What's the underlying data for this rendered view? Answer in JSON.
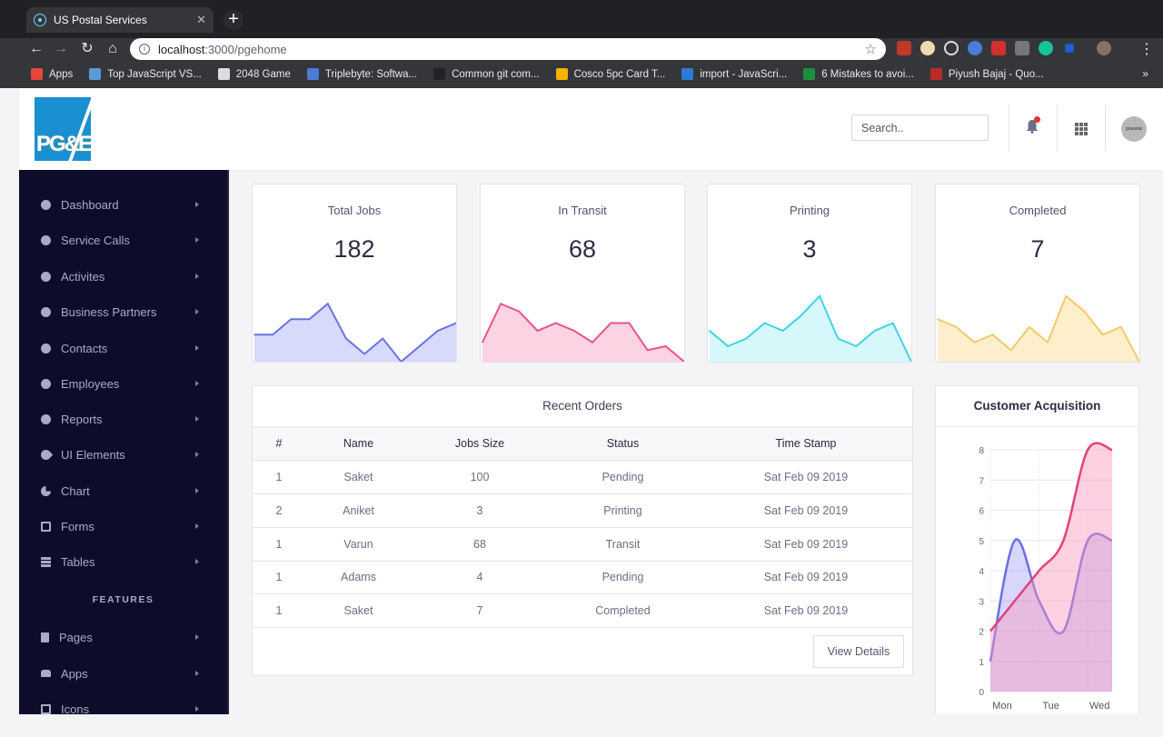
{
  "browser": {
    "tab_title": "US Postal Services",
    "tab_close": "✕",
    "new_tab": "+",
    "url_host": "localhost",
    "url_path": ":3000/pgehome",
    "bookmarks": [
      {
        "label": "Apps",
        "color": "#e8453c"
      },
      {
        "label": "Top JavaScript VS...",
        "color": "#5b9bd5"
      },
      {
        "label": "2048 Game",
        "color": "#dddddd"
      },
      {
        "label": "Triplebyte: Softwa...",
        "color": "#4a7dd8"
      },
      {
        "label": "Common git com...",
        "color": "#222222"
      },
      {
        "label": "Cosco 5pc Card T...",
        "color": "#f5b400"
      },
      {
        "label": "import - JavaScri...",
        "color": "#2b7bd6"
      },
      {
        "label": "6 Mistakes to avoi...",
        "color": "#1e8e3e"
      },
      {
        "label": "Piyush Bajaj - Quo...",
        "color": "#b92b27"
      }
    ],
    "bookmarks_more": "»"
  },
  "header": {
    "logo_text": "PG&E",
    "search_placeholder": "Search..",
    "avatar_text": "gravatar",
    "colors": {
      "notification": "#e3342f"
    }
  },
  "sidebar": {
    "items": [
      {
        "label": "Dashboard",
        "icon": "user-circle-icon"
      },
      {
        "label": "Service Calls",
        "icon": "user-circle-icon"
      },
      {
        "label": "Activites",
        "icon": "user-circle-icon"
      },
      {
        "label": "Business Partners",
        "icon": "user-circle-icon"
      },
      {
        "label": "Contacts",
        "icon": "user-circle-icon"
      },
      {
        "label": "Employees",
        "icon": "user-circle-icon"
      },
      {
        "label": "Reports",
        "icon": "user-circle-icon"
      },
      {
        "label": "UI Elements",
        "icon": "rocket-icon"
      },
      {
        "label": "Chart",
        "icon": "pie-chart-icon"
      },
      {
        "label": "Forms",
        "icon": "form-icon"
      },
      {
        "label": "Tables",
        "icon": "table-icon"
      }
    ],
    "section_label": "FEATURES",
    "feature_items": [
      {
        "label": "Pages",
        "icon": "file-icon"
      },
      {
        "label": "Apps",
        "icon": "inbox-icon"
      },
      {
        "label": "Icons",
        "icon": "window-icon"
      }
    ]
  },
  "stats": [
    {
      "title": "Total Jobs",
      "value": "182",
      "color": "#6b73e0",
      "fill": "#d8dafb",
      "values": [
        35,
        35,
        55,
        55,
        75,
        30,
        10,
        30,
        0,
        20,
        40,
        50
      ]
    },
    {
      "title": "In Transit",
      "value": "68",
      "color": "#e8538a",
      "fill": "#fbd3e2",
      "values": [
        25,
        75,
        65,
        40,
        50,
        40,
        25,
        50,
        50,
        15,
        20,
        0
      ]
    },
    {
      "title": "Printing",
      "value": "3",
      "color": "#3fd3e4",
      "fill": "#d7f8fb",
      "values": [
        40,
        20,
        30,
        50,
        40,
        60,
        85,
        30,
        20,
        40,
        50,
        0
      ]
    },
    {
      "title": "Completed",
      "value": "7",
      "color": "#f5c969",
      "fill": "#fdefcc",
      "values": [
        55,
        45,
        25,
        35,
        15,
        45,
        25,
        85,
        65,
        35,
        45,
        0
      ]
    }
  ],
  "orders": {
    "title": "Recent Orders",
    "columns": [
      "#",
      "Name",
      "Jobs Size",
      "Status",
      "Time Stamp"
    ],
    "rows": [
      [
        "1",
        "Saket",
        "100",
        "Pending",
        "Sat Feb 09 2019"
      ],
      [
        "2",
        "Aniket",
        "3",
        "Printing",
        "Sat Feb 09 2019"
      ],
      [
        "1",
        "Varun",
        "68",
        "Transit",
        "Sat Feb 09 2019"
      ],
      [
        "1",
        "Adams",
        "4",
        "Pending",
        "Sat Feb 09 2019"
      ],
      [
        "1",
        "Saket",
        "7",
        "Completed",
        "Sat Feb 09 2019"
      ]
    ],
    "button_label": "View Details"
  },
  "acquisition": {
    "title": "Customer Acquisition"
  },
  "chart_data": {
    "type": "area",
    "title": "Customer Acquisition",
    "categories": [
      "Mon",
      "Tue",
      "Wed"
    ],
    "ylim": [
      0,
      8
    ],
    "yticks": [
      0,
      1,
      2,
      3,
      4,
      5,
      6,
      7,
      8
    ],
    "x": [
      0,
      0.5,
      1,
      1.5,
      2,
      2.5
    ],
    "series": [
      {
        "values": [
          1,
          5,
          3,
          2,
          5,
          5
        ],
        "color": "#6b6ee0",
        "fill": "rgba(140,140,240,0.35)"
      },
      {
        "values": [
          2,
          3,
          4,
          5,
          8,
          8
        ],
        "color": "#e04478",
        "fill": "rgba(250,150,190,0.45)"
      }
    ],
    "grid": true
  }
}
